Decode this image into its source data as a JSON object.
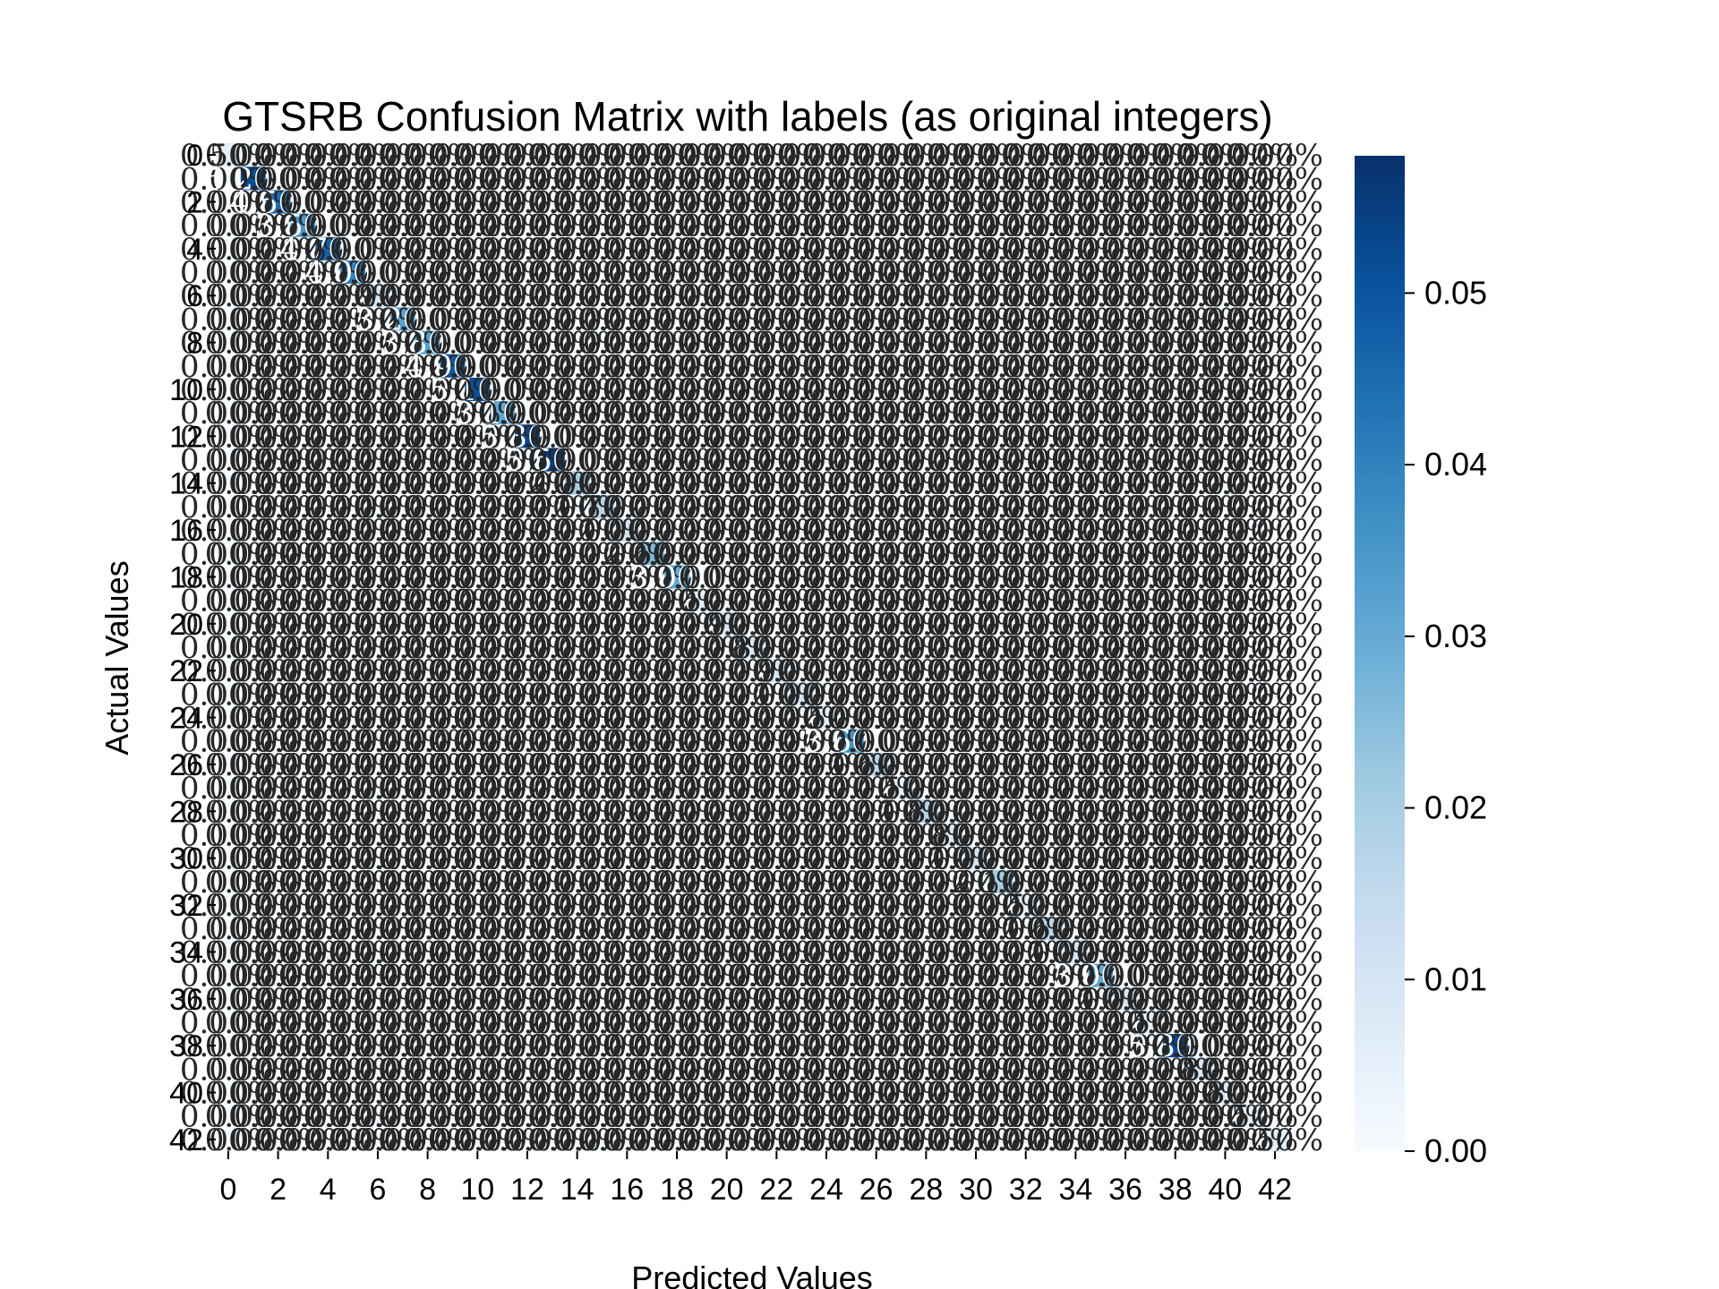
{
  "chart_data": {
    "type": "heatmap",
    "title": "GTSRB Confusion Matrix with labels (as original integers)",
    "xlabel": "Predicted Values",
    "ylabel": "Actual Values",
    "n_classes": 43,
    "x_tick_labels": [
      "0",
      "2",
      "4",
      "6",
      "8",
      "10",
      "12",
      "14",
      "16",
      "18",
      "20",
      "22",
      "24",
      "26",
      "28",
      "30",
      "32",
      "34",
      "36",
      "38",
      "40",
      "42"
    ],
    "y_tick_labels": [
      "0",
      "2",
      "4",
      "6",
      "8",
      "10",
      "12",
      "14",
      "16",
      "18",
      "20",
      "22",
      "24",
      "26",
      "28",
      "30",
      "32",
      "34",
      "36",
      "38",
      "40",
      "42"
    ],
    "colorbar": {
      "min": 0.0,
      "max": 0.058,
      "ticks": [
        "0.00",
        "0.01",
        "0.02",
        "0.03",
        "0.04",
        "0.05"
      ],
      "colormap": "Blues"
    },
    "cell_annotation_format": "percent, 2 decimals",
    "diagonal_values": [
      0.005,
      0.052,
      0.045,
      0.035,
      0.047,
      0.04,
      0.009,
      0.032,
      0.033,
      0.049,
      0.051,
      0.031,
      0.053,
      0.055,
      0.02,
      0.017,
      0.01,
      0.026,
      0.03,
      0.005,
      0.009,
      0.008,
      0.009,
      0.01,
      0.005,
      0.036,
      0.016,
      0.005,
      0.018,
      0.008,
      0.01,
      0.021,
      0.005,
      0.016,
      0.01,
      0.03,
      0.01,
      0.005,
      0.053,
      0.008,
      0.008,
      0.005,
      0.005
    ],
    "off_diagonal_value": 0.0
  },
  "colors": {
    "cmap_low": "#f7fbff",
    "cmap_high": "#08306b",
    "annotation_dark": "#262626",
    "annotation_light": "#ffffff"
  }
}
